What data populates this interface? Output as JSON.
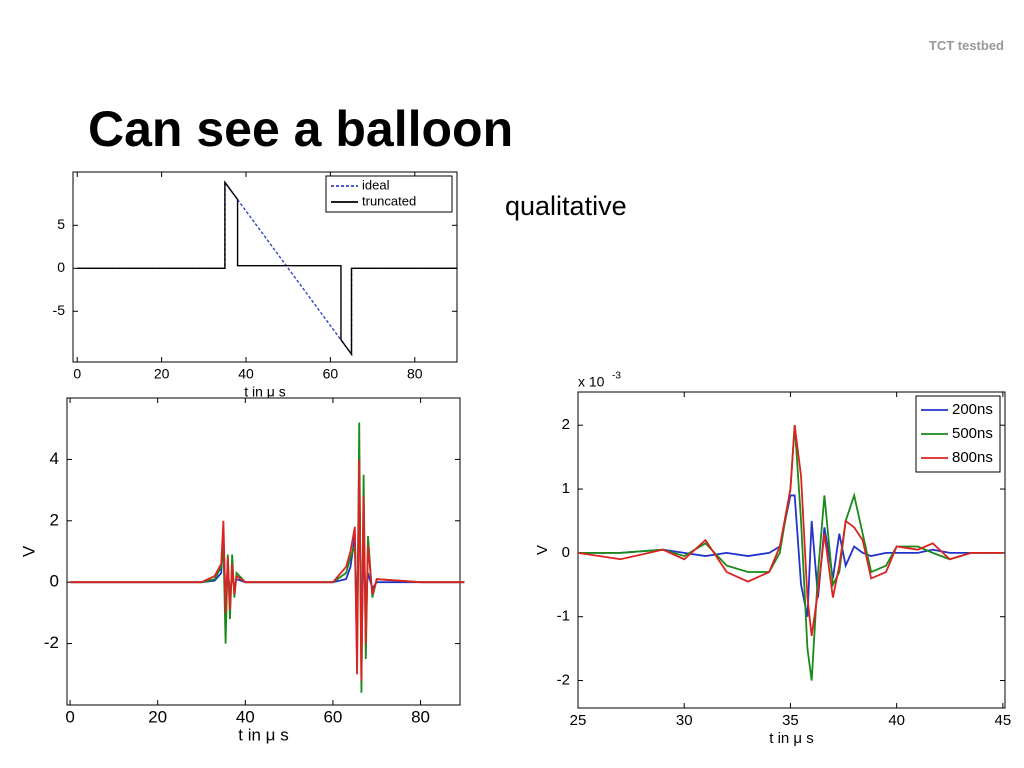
{
  "header": "TCT testbed",
  "title": "Can see a balloon",
  "note": "qualitative",
  "chart_data": [
    {
      "type": "line",
      "xlabel": "t in μ s",
      "x": [
        0,
        35,
        35,
        65,
        65,
        90
      ],
      "series": [
        {
          "name": "ideal",
          "color": "#3344cc",
          "line_style": "dashed",
          "values": [
            0,
            0,
            10,
            -10,
            0,
            0
          ]
        },
        {
          "name": "truncated",
          "color": "#000000",
          "x": [
            0,
            35,
            35,
            38,
            38,
            62.5,
            62.5,
            65,
            65,
            90
          ],
          "values": [
            0,
            0,
            10,
            8,
            0.3,
            0.3,
            -8.3,
            -10,
            0,
            0
          ]
        }
      ],
      "xlim": [
        -1,
        90
      ],
      "xticks": [
        0,
        20,
        40,
        60,
        80
      ],
      "ylim": [
        -10.9,
        11.2
      ],
      "yticks": [
        5,
        0,
        -5
      ],
      "legend": "upper right"
    },
    {
      "type": "line",
      "xlabel": "t in μ s",
      "ylabel": "V",
      "x": [
        0,
        10,
        20,
        30,
        33,
        34.5,
        35,
        35.5,
        36,
        36.5,
        37,
        37.5,
        38,
        40,
        50,
        60,
        63,
        64,
        65,
        65.5,
        66,
        66.5,
        67,
        67.5,
        68,
        69,
        70,
        80,
        90
      ],
      "series": [
        {
          "color": "#2233cc",
          "values": [
            0,
            0,
            0,
            0,
            0.05,
            0.3,
            1.5,
            -0.6,
            0.5,
            -0.5,
            0.3,
            -0.2,
            0.1,
            0,
            0,
            0,
            0.1,
            0.5,
            1.5,
            -1.5,
            3.5,
            -2,
            1,
            -0.5,
            0.3,
            -0.2,
            0,
            0,
            0
          ]
        },
        {
          "color": "#1a8a1a",
          "values": [
            0,
            0,
            0,
            0,
            0.1,
            0.5,
            1.2,
            -2.0,
            0.9,
            -1.2,
            0.9,
            -0.5,
            0.3,
            0,
            0,
            0,
            0.3,
            0.8,
            1.2,
            -2.5,
            5.2,
            -3.6,
            3.5,
            -2.5,
            1.5,
            -0.5,
            0.1,
            0,
            0
          ]
        },
        {
          "color": "#dd2222",
          "values": [
            0,
            0,
            0,
            0,
            0.2,
            0.6,
            2.0,
            -1.0,
            0.8,
            -0.9,
            0.6,
            -0.4,
            0.2,
            0,
            0,
            0,
            0.5,
            1.0,
            1.8,
            -3.0,
            4.0,
            -3.2,
            2.8,
            -2.0,
            1.2,
            -0.4,
            0.1,
            0,
            0
          ]
        }
      ],
      "xlim": [
        -0.7,
        89
      ],
      "xticks": [
        0,
        20,
        40,
        60,
        80
      ],
      "ylim": [
        -4,
        6
      ],
      "yticks": [
        -2,
        0,
        2,
        4
      ]
    },
    {
      "type": "line",
      "xlabel": "t in μ s",
      "ylabel": "V",
      "y_scale_label": {
        "base": "x 10",
        "exponent": "-3"
      },
      "x": [
        25,
        27,
        29,
        30,
        31,
        32,
        33,
        34,
        34.5,
        35,
        35.2,
        35.5,
        35.8,
        36,
        36.3,
        36.6,
        37,
        37.3,
        37.6,
        38,
        38.4,
        38.8,
        39.5,
        40,
        41,
        41.7,
        42.5,
        43.5,
        45
      ],
      "series": [
        {
          "name": "200ns",
          "color": "#2233cc",
          "values": [
            0,
            0,
            0.05,
            0,
            -0.05,
            0,
            -0.05,
            0,
            0.1,
            0.9,
            0.9,
            -0.5,
            -1.0,
            0.5,
            -0.7,
            0.4,
            -0.4,
            0.3,
            -0.2,
            0.1,
            0,
            -0.05,
            0,
            0,
            0,
            0.05,
            0,
            0,
            0
          ]
        },
        {
          "name": "500ns",
          "color": "#1a8a1a",
          "values": [
            0,
            0,
            0.05,
            -0.05,
            0.15,
            -0.2,
            -0.3,
            -0.3,
            0,
            1.0,
            2.0,
            0.5,
            -1.5,
            -2.0,
            -0.3,
            0.9,
            -0.5,
            -0.3,
            0.5,
            0.9,
            0.3,
            -0.3,
            -0.2,
            0.1,
            0.1,
            0,
            -0.1,
            0,
            0
          ]
        },
        {
          "name": "800ns",
          "color": "#dd2222",
          "values": [
            0,
            -0.1,
            0.05,
            -0.1,
            0.2,
            -0.3,
            -0.45,
            -0.3,
            0.1,
            1.0,
            2.0,
            1.2,
            -0.7,
            -1.3,
            -0.6,
            0.3,
            -0.7,
            -0.2,
            0.5,
            0.4,
            0.2,
            -0.4,
            -0.3,
            0.1,
            0.05,
            0.15,
            -0.1,
            0,
            0
          ]
        }
      ],
      "xlim": [
        25,
        45.1
      ],
      "xticks": [
        25,
        30,
        35,
        40,
        45
      ],
      "ylim": [
        -2.43,
        2.52
      ],
      "yticks": [
        -2,
        -1,
        0,
        1,
        2
      ],
      "legend": "upper right"
    }
  ]
}
